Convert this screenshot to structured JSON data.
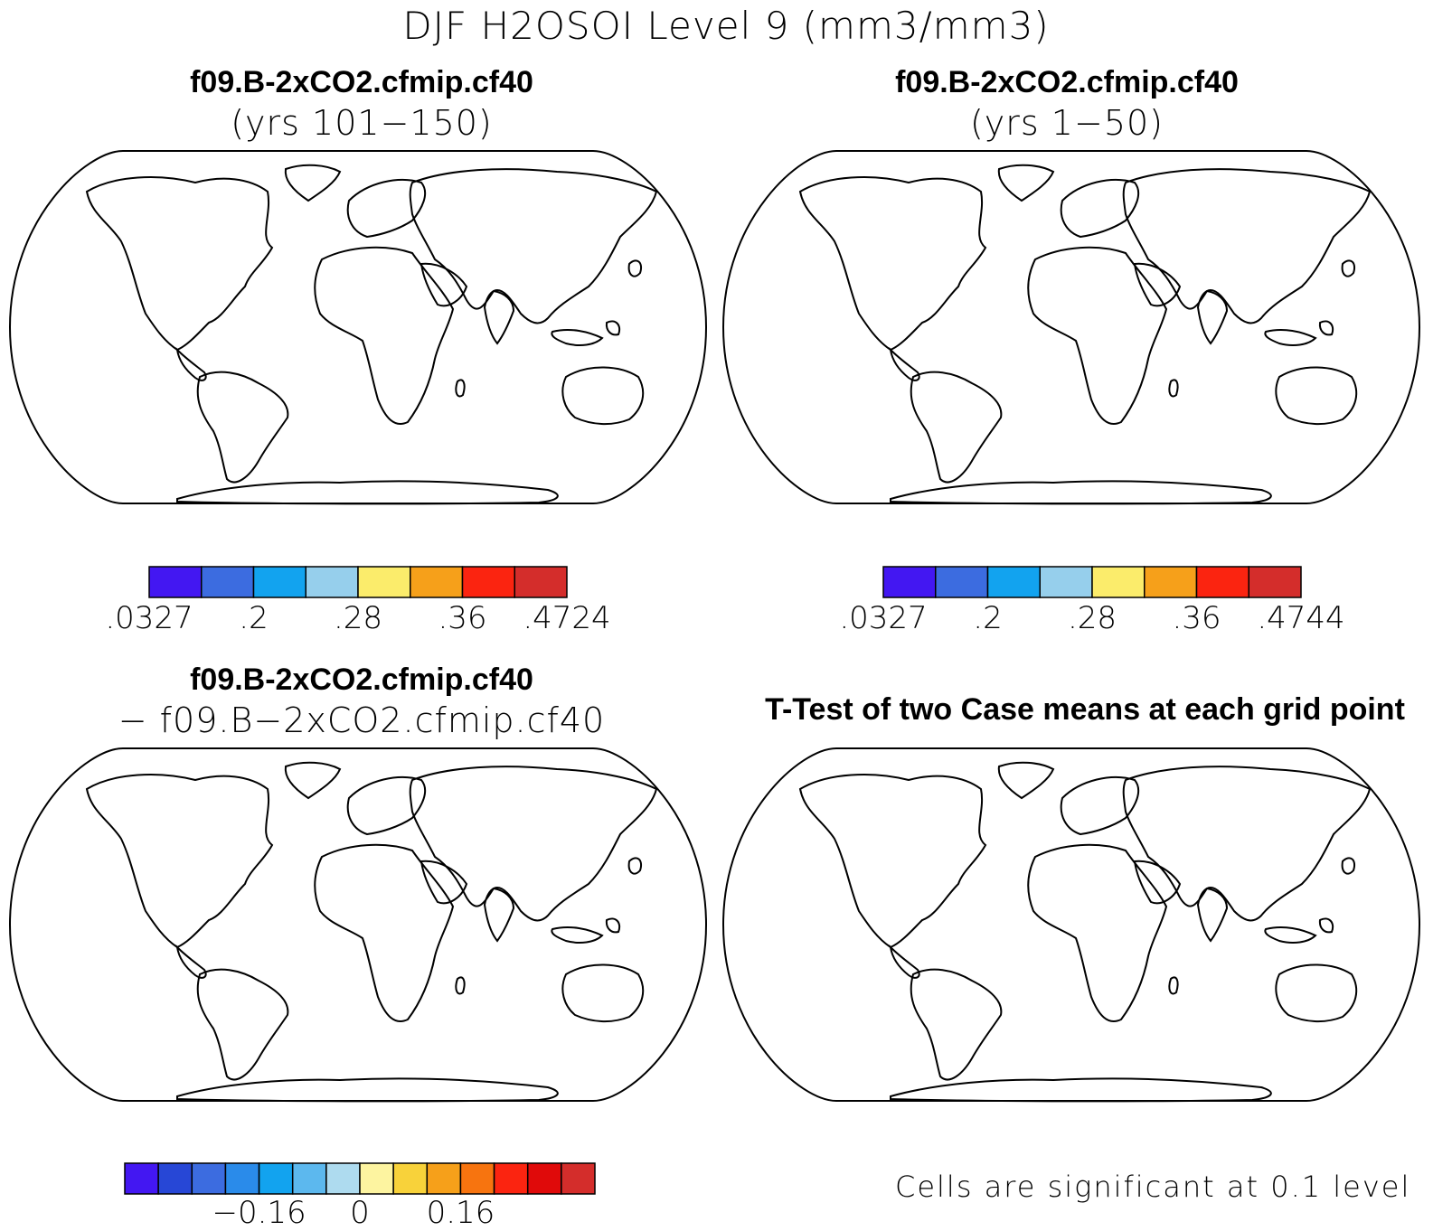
{
  "title": "DJF H2OSOI Level 9 (mm3/mm3)",
  "panels": [
    {
      "id": "case1",
      "title": "f09.B-2xCO2.cfmip.cf40",
      "subtitle": "(yrs 101−150)",
      "colorbar": {
        "colors": [
          "#4317f2",
          "#3c6ce0",
          "#12a3ef",
          "#96cfec",
          "#fbec6b",
          "#f6a01a",
          "#fb2410",
          "#d42d2b"
        ],
        "ticks": [
          ".0327",
          ".2",
          ".28",
          ".36",
          ".4724"
        ]
      }
    },
    {
      "id": "case2",
      "title": "f09.B-2xCO2.cfmip.cf40",
      "subtitle": "(yrs 1−50)",
      "colorbar": {
        "colors": [
          "#4317f2",
          "#3c6ce0",
          "#12a3ef",
          "#96cfec",
          "#fbec6b",
          "#f6a01a",
          "#fb2410",
          "#d42d2b"
        ],
        "ticks": [
          ".0327",
          ".2",
          ".28",
          ".36",
          ".4744"
        ]
      }
    },
    {
      "id": "diff",
      "title": "f09.B-2xCO2.cfmip.cf40",
      "subtitle": "− f09.B−2xCO2.cfmip.cf40",
      "colorbar": {
        "colors": [
          "#4317f2",
          "#2747d6",
          "#3c6ce0",
          "#2a8bea",
          "#12a3ef",
          "#5cb8ee",
          "#aedbef",
          "#fdf4a0",
          "#f8d23a",
          "#f6a01a",
          "#f7740f",
          "#fb2410",
          "#e00a0a",
          "#d42d2b"
        ],
        "ticks": [
          "−0.16",
          "0",
          "0.16"
        ]
      }
    },
    {
      "id": "ttest",
      "title": "T-Test of two Case means at each grid point",
      "note": "Cells are significant at 0.1 level",
      "significant_color": "#ee1111"
    }
  ],
  "palette": {
    "land_outline": "#000000",
    "ocean": "#ffffff"
  }
}
